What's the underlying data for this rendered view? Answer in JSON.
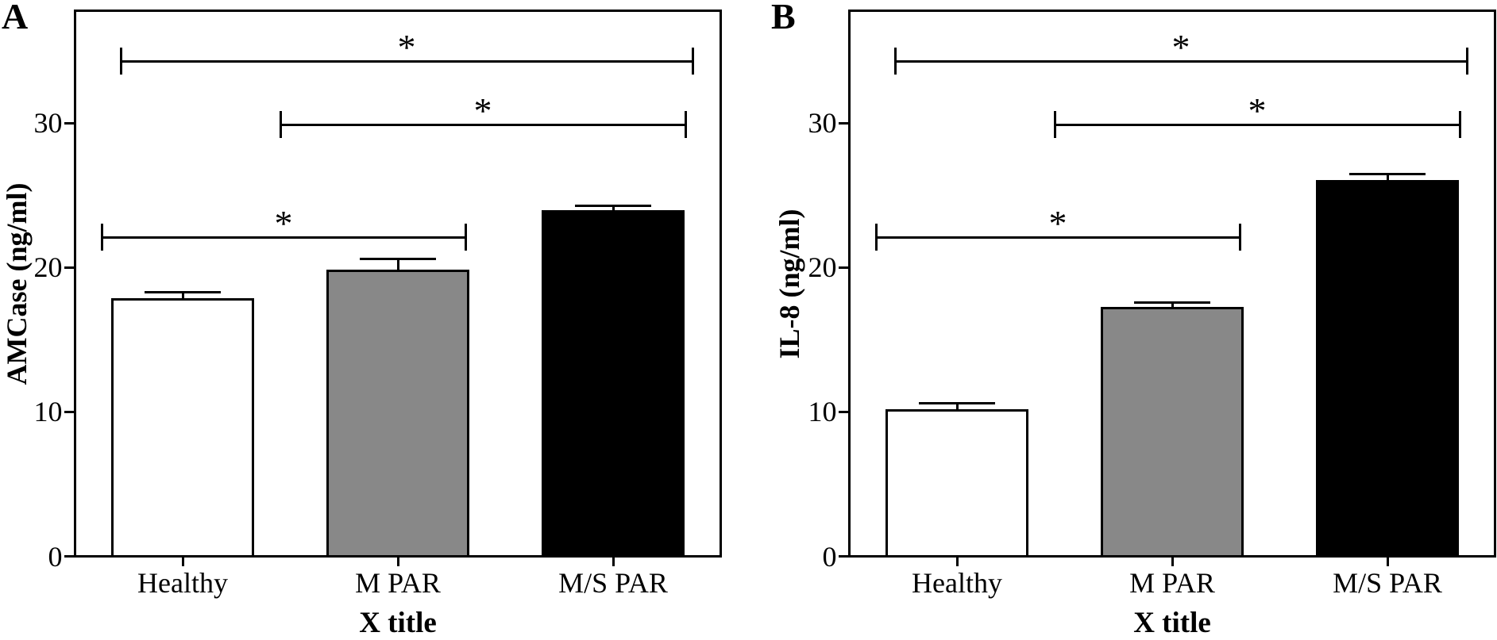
{
  "figure": {
    "background": "#ffffff",
    "ink_color": "#000000",
    "gray_fill": "#888888"
  },
  "chart_data": [
    {
      "type": "bar",
      "panel_label": "A",
      "ylabel": "AMCase (ng/ml)",
      "xlabel": "X title",
      "categories": [
        "Healthy",
        "M PAR",
        "M/S PAR"
      ],
      "values": [
        17.8,
        19.8,
        23.9
      ],
      "errors_sem": [
        0.5,
        0.8,
        0.4
      ],
      "bar_fills": [
        "#ffffff",
        "#888888",
        "#000000"
      ],
      "bar_edge_color": "#000000",
      "yticks": [
        "0",
        "10",
        "20",
        "30"
      ],
      "ytick_values": [
        0,
        10,
        20,
        30
      ],
      "ylim": [
        0,
        37.8
      ],
      "grid": false,
      "legend": "none",
      "significance_brackets": [
        {
          "from": 0,
          "to": 2,
          "y": 34.3,
          "label": "*",
          "x1_off": 12,
          "x2_off": 10
        },
        {
          "from": 1,
          "to": 2,
          "y": 29.9,
          "label": "*",
          "x1_off": -58,
          "x2_off": 1
        },
        {
          "from": 0,
          "to": 1,
          "y": 22.1,
          "label": "*",
          "x1_off": -12,
          "x2_off": -5
        }
      ]
    },
    {
      "type": "bar",
      "panel_label": "B",
      "ylabel": "IL-8 (ng/ml)",
      "xlabel": "X title",
      "categories": [
        "Healthy",
        "M PAR",
        "M/S PAR"
      ],
      "values": [
        10.1,
        17.2,
        26.0
      ],
      "errors_sem": [
        0.5,
        0.4,
        0.5
      ],
      "bar_fills": [
        "#ffffff",
        "#888888",
        "#000000"
      ],
      "bar_edge_color": "#000000",
      "yticks": [
        "0",
        "10",
        "20",
        "30"
      ],
      "ytick_values": [
        0,
        10,
        20,
        30
      ],
      "ylim": [
        0,
        37.8
      ],
      "grid": false,
      "legend": "none",
      "significance_brackets": [
        {
          "from": 0,
          "to": 2,
          "y": 34.3,
          "label": "*",
          "x1_off": 12,
          "x2_off": 10
        },
        {
          "from": 1,
          "to": 2,
          "y": 29.9,
          "label": "*",
          "x1_off": -58,
          "x2_off": 1
        },
        {
          "from": 0,
          "to": 1,
          "y": 22.1,
          "label": "*",
          "x1_off": -12,
          "x2_off": -5
        }
      ]
    }
  ]
}
